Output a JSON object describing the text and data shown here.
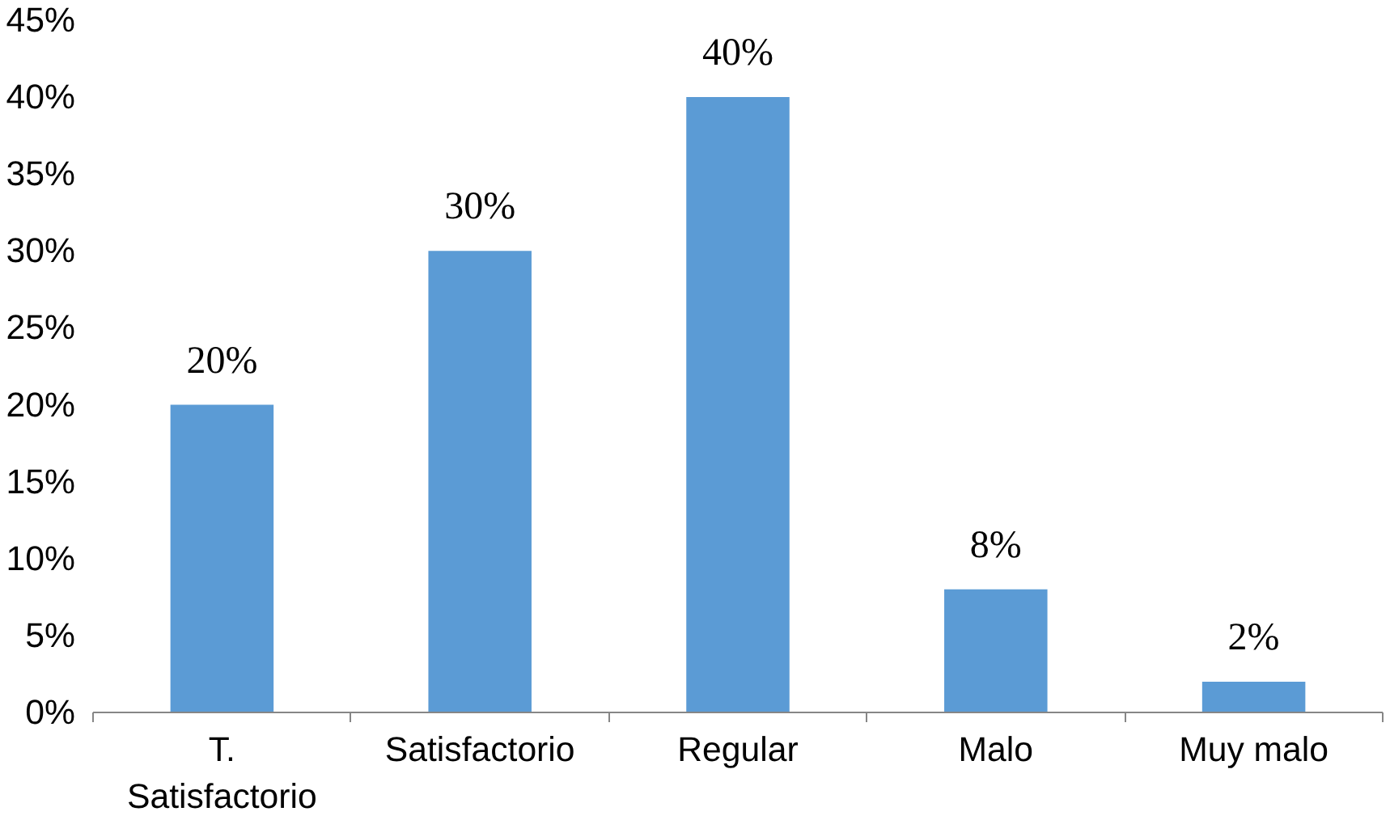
{
  "chart_data": {
    "type": "bar",
    "categories": [
      "T. Satisfactorio",
      "Satisfactorio",
      "Regular",
      "Malo",
      "Muy malo"
    ],
    "values": [
      20,
      30,
      40,
      8,
      2
    ],
    "value_labels": [
      "20%",
      "30%",
      "40%",
      "8%",
      "2%"
    ],
    "color": "#5b9bd5",
    "ylim": [
      0,
      45
    ],
    "yticks": [
      {
        "value": 0,
        "label": "0%"
      },
      {
        "value": 5,
        "label": "5%"
      },
      {
        "value": 10,
        "label": "10%"
      },
      {
        "value": 15,
        "label": "15%"
      },
      {
        "value": 20,
        "label": "20%"
      },
      {
        "value": 25,
        "label": "25%"
      },
      {
        "value": 30,
        "label": "30%"
      },
      {
        "value": 35,
        "label": "35%"
      },
      {
        "value": 40,
        "label": "40%"
      },
      {
        "value": 45,
        "label": "45%"
      }
    ],
    "grid": false
  }
}
